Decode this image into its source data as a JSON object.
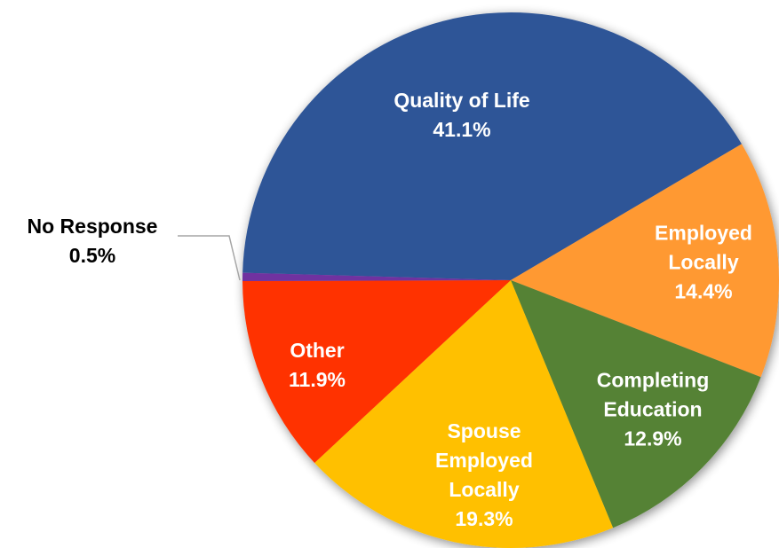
{
  "chart_data": {
    "type": "pie",
    "categories": [
      "Quality of Life",
      "Employed Locally",
      "Completing Education",
      "Spouse Employed Locally",
      "Other",
      "No Response"
    ],
    "values": [
      41.1,
      14.4,
      12.9,
      19.3,
      11.9,
      0.5
    ],
    "value_labels": [
      "41.1%",
      "14.4%",
      "12.9%",
      "19.3%",
      "11.9%",
      "0.5%"
    ],
    "colors": [
      "#2f5597",
      "#ff9933",
      "#548235",
      "#ffc000",
      "#ff3300",
      "#7030a0"
    ]
  }
}
